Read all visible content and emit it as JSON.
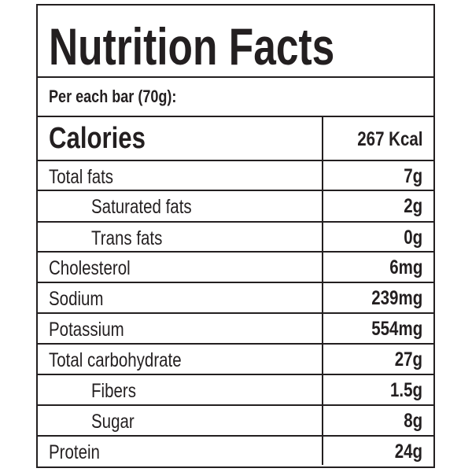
{
  "title": "Nutrition Facts",
  "serving": "Per each bar  (70g):",
  "calories": {
    "label": "Calories",
    "value": "267 Kcal"
  },
  "rows": [
    {
      "label": "Total fats",
      "value": "7g",
      "indent": false
    },
    {
      "label": "Saturated fats",
      "value": "2g",
      "indent": true
    },
    {
      "label": "Trans fats",
      "value": "0g",
      "indent": true
    },
    {
      "label": "Cholesterol",
      "value": "6mg",
      "indent": false
    },
    {
      "label": "Sodium",
      "value": "239mg",
      "indent": false
    },
    {
      "label": "Potassium",
      "value": "554mg",
      "indent": false
    },
    {
      "label": "Total carbohydrate",
      "value": "27g",
      "indent": false
    },
    {
      "label": "Fibers",
      "value": "1.5g",
      "indent": true
    },
    {
      "label": "Sugar",
      "value": "8g",
      "indent": true
    },
    {
      "label": "Protein",
      "value": "24g",
      "indent": false
    }
  ]
}
